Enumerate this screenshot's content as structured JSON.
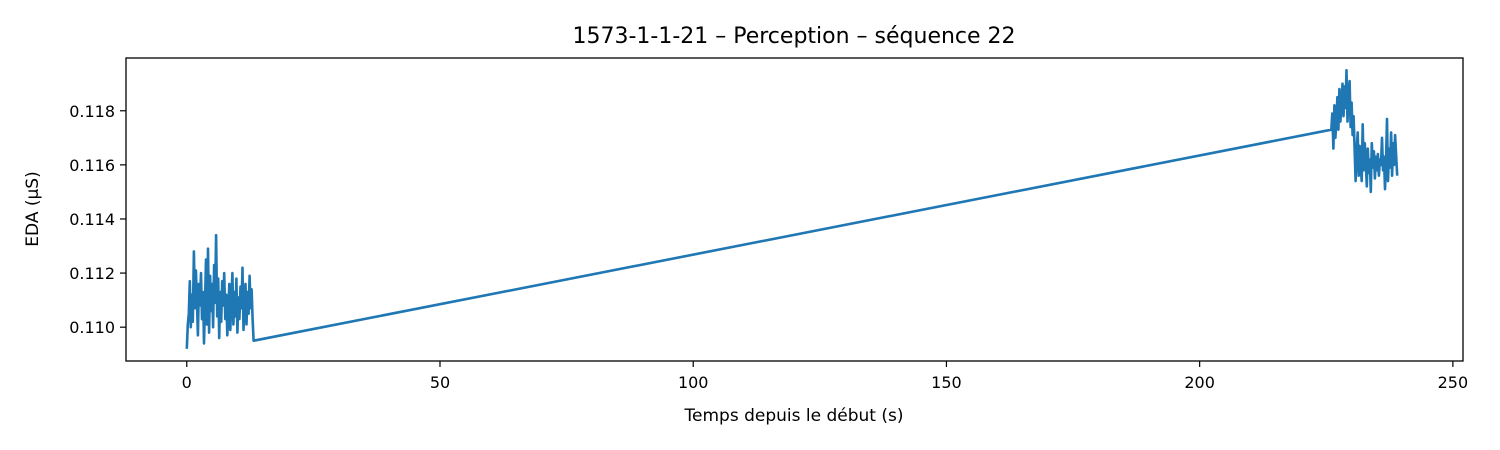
{
  "chart_data": {
    "type": "line",
    "title": "1573-1-1-21 – Perception – séquence 22",
    "xlabel": "Temps depuis le début (s)",
    "ylabel": "EDA (µS)",
    "xlim": [
      -12,
      252
    ],
    "ylim": [
      0.10875,
      0.11995
    ],
    "xticks": [
      0,
      50,
      100,
      150,
      200,
      250
    ],
    "xtick_labels": [
      "0",
      "50",
      "100",
      "150",
      "200",
      "250"
    ],
    "yticks": [
      0.11,
      0.112,
      0.114,
      0.116,
      0.118
    ],
    "ytick_labels": [
      "0.110",
      "0.112",
      "0.114",
      "0.116",
      "0.118"
    ],
    "grid": false,
    "legend": "none",
    "line_color": "#1f77b4",
    "series": [
      {
        "x": [
          0.0,
          0.2,
          0.4,
          0.6,
          0.8,
          1.0,
          1.2,
          1.4,
          1.6,
          1.8,
          2.0,
          2.2,
          2.4,
          2.6,
          2.8,
          3.0,
          3.2,
          3.4,
          3.6,
          3.8,
          4.0,
          4.2,
          4.4,
          4.6,
          4.8,
          5.0,
          5.2,
          5.4,
          5.6,
          5.8,
          6.0,
          6.2,
          6.4,
          6.6,
          6.8,
          7.0,
          7.2,
          7.4,
          7.6,
          7.8,
          8.0,
          8.2,
          8.4,
          8.6,
          8.8,
          9.0,
          9.2,
          9.4,
          9.6,
          9.8,
          10.0,
          10.2,
          10.4,
          10.6,
          10.8,
          11.0,
          11.2,
          11.4,
          11.6,
          11.8,
          12.0,
          12.2,
          12.4,
          12.6,
          12.8,
          13.0,
          13.2,
          226.0,
          226.2,
          226.4,
          226.6,
          226.8,
          227.0,
          227.2,
          227.4,
          227.6,
          227.8,
          228.0,
          228.2,
          228.4,
          228.6,
          228.8,
          229.0,
          229.2,
          229.4,
          229.6,
          229.8,
          230.0,
          230.2,
          230.4,
          230.6,
          230.8,
          231.0,
          231.2,
          231.4,
          231.6,
          231.8,
          232.0,
          232.2,
          232.4,
          232.6,
          232.8,
          233.0,
          233.2,
          233.4,
          233.6,
          233.8,
          234.0,
          234.2,
          234.4,
          234.6,
          234.8,
          235.0,
          235.2,
          235.4,
          235.6,
          235.8,
          236.0,
          236.2,
          236.4,
          236.6,
          236.8,
          237.0,
          237.2,
          237.4,
          237.6,
          237.8,
          238.0,
          238.2,
          238.4,
          238.6,
          238.8,
          239.0
        ],
        "y": [
          0.1092,
          0.1101,
          0.1105,
          0.1117,
          0.11,
          0.1112,
          0.1102,
          0.1128,
          0.1107,
          0.1121,
          0.111,
          0.1097,
          0.1116,
          0.1108,
          0.112,
          0.1103,
          0.1113,
          0.1094,
          0.1109,
          0.1125,
          0.1101,
          0.1129,
          0.1098,
          0.1119,
          0.1106,
          0.1116,
          0.11,
          0.1123,
          0.1109,
          0.1134,
          0.1104,
          0.1118,
          0.1096,
          0.1113,
          0.1102,
          0.1117,
          0.1108,
          0.112,
          0.1103,
          0.1112,
          0.1097,
          0.1105,
          0.1116,
          0.1099,
          0.111,
          0.112,
          0.1101,
          0.1113,
          0.1104,
          0.1118,
          0.1098,
          0.1111,
          0.1103,
          0.1115,
          0.1107,
          0.1122,
          0.1099,
          0.1108,
          0.1116,
          0.1101,
          0.1113,
          0.1105,
          0.1119,
          0.1107,
          0.1114,
          0.1103,
          0.1095,
          0.1173,
          0.1179,
          0.1166,
          0.1182,
          0.117,
          0.1177,
          0.1185,
          0.1173,
          0.1188,
          0.1176,
          0.1183,
          0.119,
          0.1178,
          0.1189,
          0.1181,
          0.1195,
          0.1176,
          0.1186,
          0.1191,
          0.1174,
          0.1183,
          0.1171,
          0.1178,
          0.1166,
          0.1154,
          0.1165,
          0.1172,
          0.1156,
          0.1167,
          0.116,
          0.1154,
          0.1175,
          0.1158,
          0.1168,
          0.1161,
          0.1152,
          0.1166,
          0.1157,
          0.1162,
          0.115,
          0.1168,
          0.1159,
          0.1165,
          0.1155,
          0.1163,
          0.1158,
          0.1164,
          0.1156,
          0.1162,
          0.116,
          0.117,
          0.1158,
          0.1163,
          0.1151,
          0.1161,
          0.1177,
          0.1154,
          0.1166,
          0.1159,
          0.1172,
          0.1156,
          0.1168,
          0.116,
          0.1171,
          0.1163,
          0.1156
        ]
      }
    ]
  }
}
